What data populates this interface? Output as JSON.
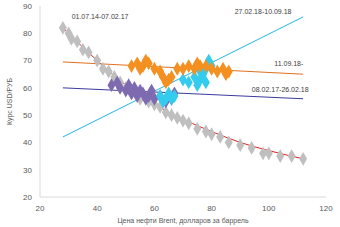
{
  "chart_data": {
    "type": "scatter",
    "xlabel": "Цена нефти Brent, долларов за баррель",
    "ylabel": "Курс USD/РУБ",
    "xlim": [
      20,
      120
    ],
    "ylim": [
      20,
      90
    ],
    "xticks": [
      20,
      40,
      60,
      80,
      100,
      120
    ],
    "yticks": [
      20,
      30,
      40,
      50,
      60,
      70,
      80,
      90
    ],
    "grid": false,
    "series": [
      {
        "name": "01.07.14-07.02.17",
        "color": "#bfbfbf",
        "marker": "diamond",
        "x": [
          28,
          30,
          31,
          33,
          35,
          37,
          40,
          42,
          44,
          46,
          48,
          50,
          52,
          55,
          58,
          60,
          62,
          64,
          66,
          68,
          70,
          72,
          75,
          78,
          80,
          83,
          86,
          90,
          94,
          98,
          100,
          104,
          108,
          112
        ],
        "y": [
          82,
          80,
          78,
          77,
          74,
          73,
          70,
          67,
          66,
          64,
          62,
          60,
          58,
          56,
          55,
          54,
          53,
          51,
          50,
          49,
          48,
          47,
          45,
          44,
          43,
          42,
          40,
          39,
          38,
          36,
          36,
          35,
          35,
          34
        ],
        "trend": {
          "color": "#e02020",
          "x": [
            28,
            40,
            50,
            60,
            70,
            80,
            90,
            100,
            112
          ],
          "y": [
            82,
            70,
            61,
            54,
            48.5,
            44,
            40,
            37,
            34
          ]
        },
        "label_x": 41,
        "label_y": 86
      },
      {
        "name": "08.02.17-26.02.18",
        "color": "#7e6ab0",
        "marker": "diamond",
        "x": [
          45,
          47,
          48,
          50,
          51,
          52,
          53,
          54,
          55,
          56,
          57,
          58,
          59,
          60,
          62,
          64,
          66,
          67
        ],
        "y": [
          61,
          62,
          60,
          59,
          61,
          58,
          60,
          57,
          59,
          58,
          56,
          57,
          59,
          56,
          57,
          55,
          56,
          58
        ],
        "trend": {
          "color": "#3a3aa0",
          "x": [
            28,
            112
          ],
          "y": [
            60,
            56
          ]
        },
        "label_x": 104,
        "label_y": 59.5
      },
      {
        "name": "27.02.18-10.09.18",
        "color": "#33ccee",
        "marker": "diamond",
        "x": [
          62,
          63,
          64,
          65,
          66,
          67,
          70,
          72,
          74,
          75,
          76,
          77,
          78,
          79,
          80,
          78,
          76
        ],
        "y": [
          57,
          55,
          56,
          58,
          56,
          57,
          63,
          62,
          64,
          61,
          63,
          65,
          62,
          70,
          68,
          67,
          66
        ],
        "trend": {
          "color": "#1fb5dd",
          "x": [
            28,
            112
          ],
          "y": [
            42,
            86
          ]
        },
        "label_x": 98,
        "label_y": 88
      },
      {
        "name": "11.09.18-",
        "color": "#f39020",
        "marker": "diamond",
        "x": [
          52,
          54,
          55,
          56,
          57,
          58,
          60,
          62,
          63,
          64,
          65,
          66,
          68,
          70,
          72,
          74,
          75,
          76,
          78,
          80,
          82,
          84,
          86,
          85
        ],
        "y": [
          68,
          69,
          67,
          68,
          70,
          69,
          67,
          66,
          64,
          62,
          63,
          64,
          67,
          67,
          68,
          67,
          69,
          68,
          68,
          67,
          66,
          67,
          66,
          65
        ],
        "trend": {
          "color": "#e07020",
          "x": [
            28,
            112
          ],
          "y": [
            69.5,
            65
          ]
        },
        "label_x": 107,
        "label_y": 69
      }
    ]
  }
}
